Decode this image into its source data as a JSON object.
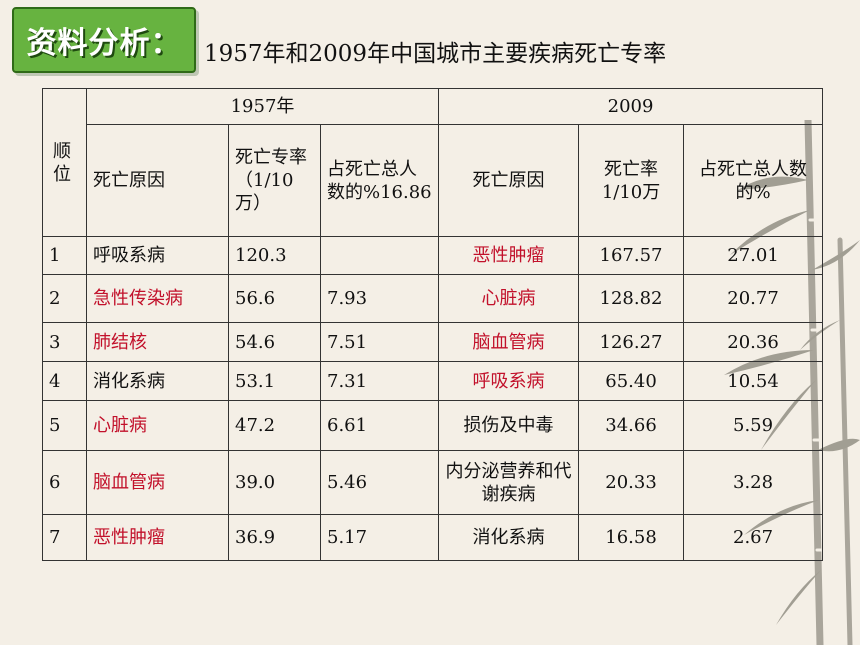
{
  "badge": "资料分析：",
  "title": "1957年和2009年中国城市主要疾病死亡专率",
  "table": {
    "rank_header": "顺位",
    "year_a": "1957年",
    "year_b": "2009",
    "cols_a": [
      "死亡原因",
      "死亡专率（1/10万）",
      "占死亡总人数的%16.86"
    ],
    "cols_b": [
      "死亡原因",
      "死亡率1/10万",
      "占死亡总人数的%"
    ],
    "rows": [
      {
        "rank": "1",
        "a_cause": "呼吸系病",
        "a_rate": "120.3",
        "a_pct": "",
        "b_cause": "恶性肿瘤",
        "b_rate": "167.57",
        "b_pct": "27.01"
      },
      {
        "rank": "2",
        "a_cause": "急性传染病",
        "a_rate": "56.6",
        "a_pct": "7.93",
        "b_cause": "心脏病",
        "b_rate": "128.82",
        "b_pct": "20.77"
      },
      {
        "rank": "3",
        "a_cause": "肺结核",
        "a_rate": "54.6",
        "a_pct": "7.51",
        "b_cause": "脑血管病",
        "b_rate": "126.27",
        "b_pct": "20.36"
      },
      {
        "rank": "4",
        "a_cause": "消化系病",
        "a_rate": "53.1",
        "a_pct": "7.31",
        "b_cause": "呼吸系病",
        "b_rate": "65.40",
        "b_pct": "10.54"
      },
      {
        "rank": "5",
        "a_cause": "心脏病",
        "a_rate": "47.2",
        "a_pct": "6.61",
        "b_cause": "损伤及中毒",
        "b_rate": "34.66",
        "b_pct": "5.59"
      },
      {
        "rank": "6",
        "a_cause": "脑血管病",
        "a_rate": "39.0",
        "a_pct": "5.46",
        "b_cause": "内分泌营养和代谢疾病",
        "b_rate": "20.33",
        "b_pct": "3.28"
      },
      {
        "rank": "7",
        "a_cause": "恶性肿瘤",
        "a_rate": "36.9",
        "a_pct": "5.17",
        "b_cause": "消化系病",
        "b_rate": "16.58",
        "b_pct": "2.67"
      }
    ]
  },
  "colors": {
    "highlight": "#c2112b",
    "badge": "#67b340",
    "background": "#f4efe6"
  }
}
